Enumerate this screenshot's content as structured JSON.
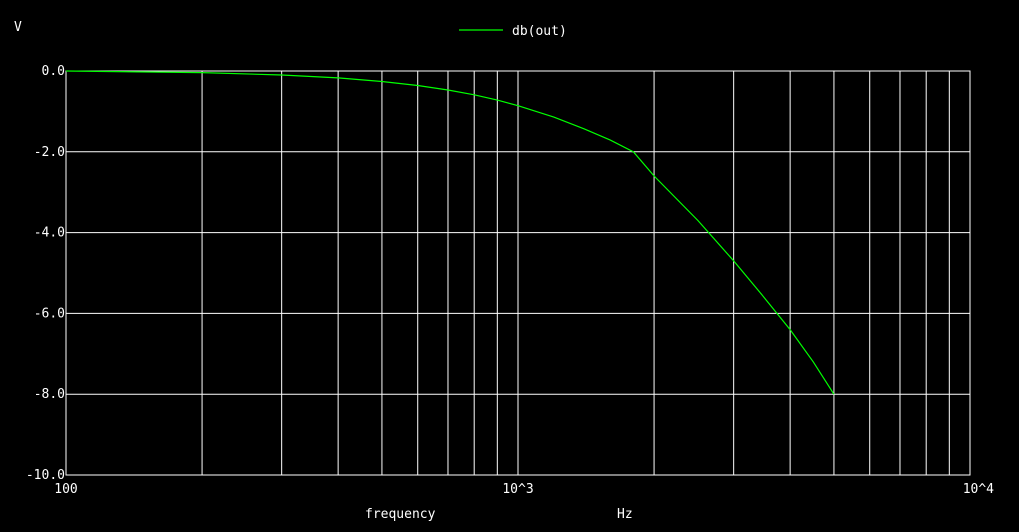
{
  "chart_data": {
    "type": "line",
    "ylabel": "V",
    "x_scale": "log",
    "xlim": [
      100,
      10000
    ],
    "ylim": [
      -10,
      0
    ],
    "x_ticks": [
      {
        "value": 100,
        "label": "100"
      },
      {
        "value": 1000,
        "label": "10^3"
      },
      {
        "value": 10000,
        "label": "10^4"
      }
    ],
    "y_ticks": [
      {
        "value": 0,
        "label": "0.0"
      },
      {
        "value": -2,
        "label": "-2.0"
      },
      {
        "value": -4,
        "label": "-4.0"
      },
      {
        "value": -6,
        "label": "-6.0"
      },
      {
        "value": -8,
        "label": "-8.0"
      },
      {
        "value": -10,
        "label": "-10.0"
      }
    ],
    "x_axis_label": "frequency",
    "x_unit_label": "Hz",
    "grid": true,
    "legend_position": "top-center",
    "series": [
      {
        "name": "db(out)",
        "color": "#00ff00",
        "x": [
          100,
          200,
          300,
          400,
          500,
          600,
          700,
          800,
          900,
          1000,
          1200,
          1400,
          1600,
          1800,
          2000,
          2500,
          3000,
          3500,
          4000,
          4500,
          5000
        ],
        "y": [
          0.0,
          -0.04,
          -0.1,
          -0.17,
          -0.26,
          -0.36,
          -0.47,
          -0.59,
          -0.72,
          -0.86,
          -1.14,
          -1.43,
          -1.71,
          -2.0,
          -2.6,
          -3.7,
          -4.7,
          -5.6,
          -6.4,
          -7.2,
          -8.0
        ]
      }
    ]
  },
  "colors": {
    "background": "#000000",
    "grid": "#ffffff",
    "text": "#ffffff",
    "trace": "#00ff00"
  }
}
